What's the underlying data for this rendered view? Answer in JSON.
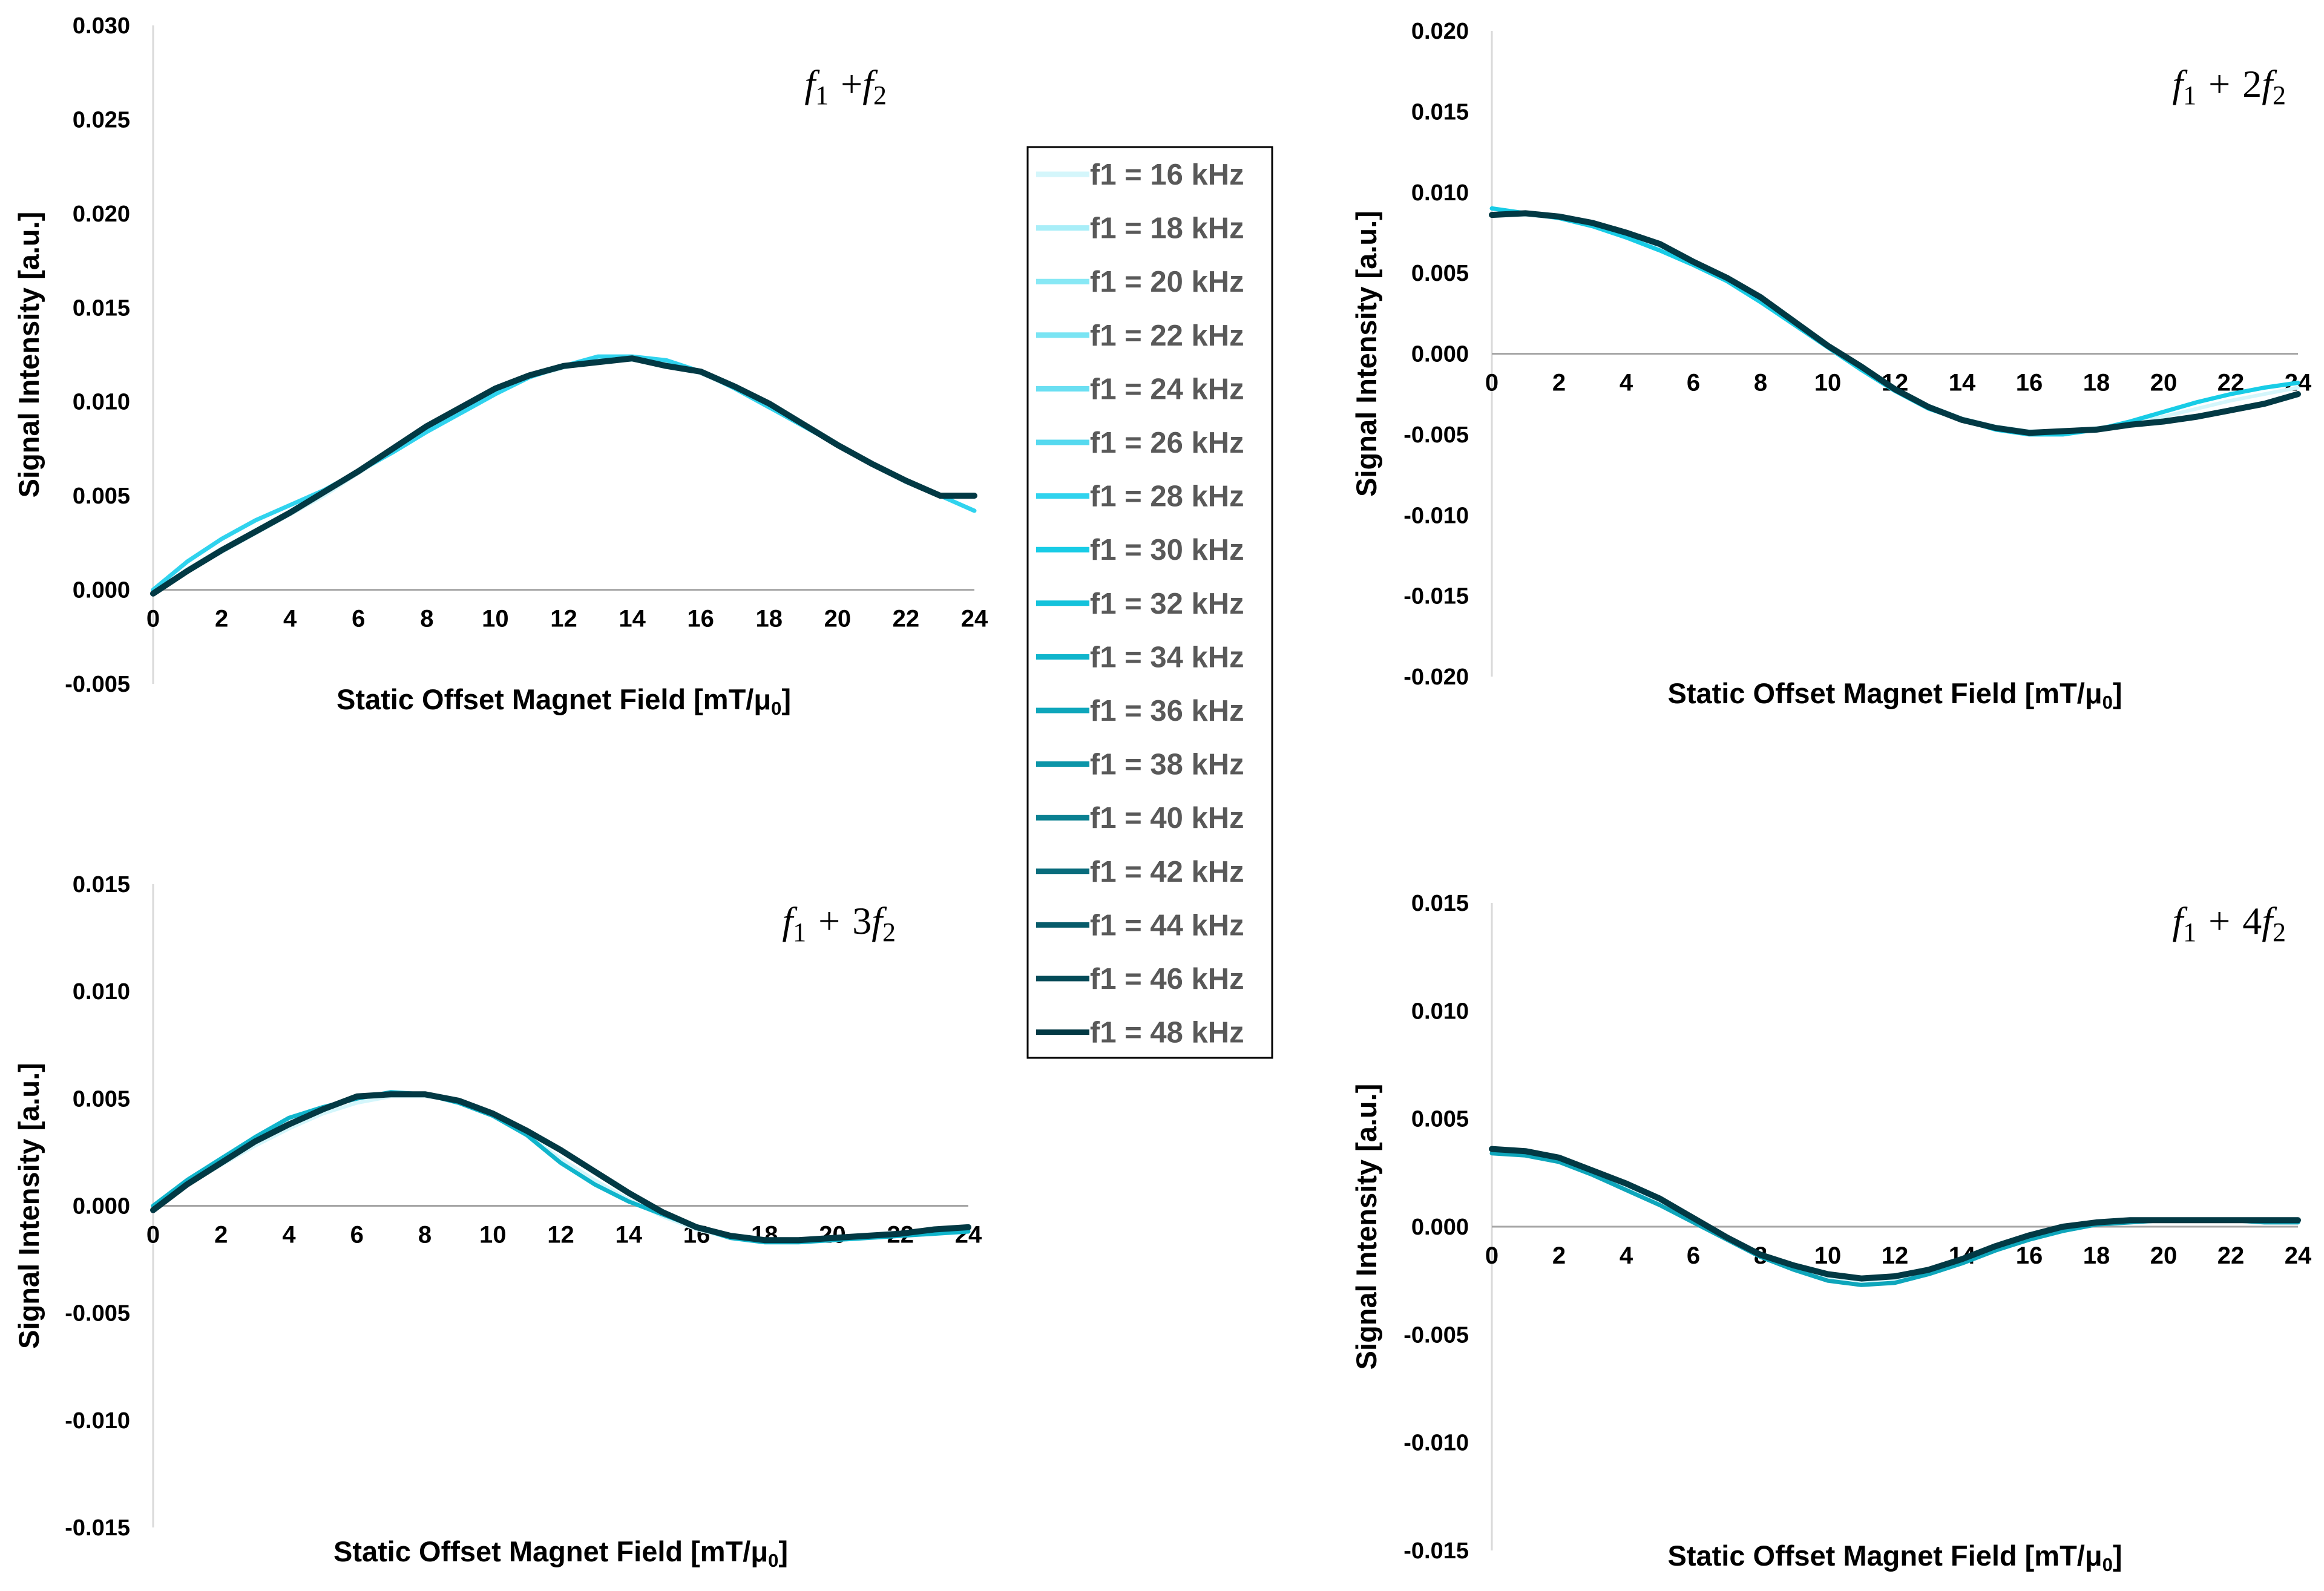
{
  "legend": {
    "series_names": [
      "f1 = 16 kHz",
      "f1 = 18 kHz",
      "f1 = 20 kHz",
      "f1 = 22 kHz",
      "f1 = 24 kHz",
      "f1 = 26 kHz",
      "f1 = 28 kHz",
      "f1 = 30 kHz",
      "f1 = 32 kHz",
      "f1 = 34 kHz",
      "f1 = 36 kHz",
      "f1 = 38 kHz",
      "f1 = 40 kHz",
      "f1 = 42 kHz",
      "f1 = 44 kHz",
      "f1 = 46 kHz",
      "f1 = 48 kHz"
    ],
    "series_colors": [
      "#d4f6fb",
      "#a8eef8",
      "#88e8f5",
      "#7ae4f3",
      "#6adff2",
      "#55d9ef",
      "#30d3ee",
      "#18cce6",
      "#14c2db",
      "#10b5cc",
      "#0ea6bb",
      "#0c95a8",
      "#0a8091",
      "#096c7c",
      "#075b6a",
      "#044b58",
      "#023944"
    ]
  },
  "chart_data": [
    {
      "type": "line",
      "title": "f1 + f2",
      "title_parts": {
        "a": "f",
        "s1": "1",
        "op": "+",
        "coef": "",
        "b": "f",
        "s2": "2"
      },
      "xlabel": "Static Offset Magnet Field [mT/μ0]",
      "ylabel": "Signal Intensity [a.u.]",
      "xlim": [
        0,
        24
      ],
      "ylim": [
        -0.005,
        0.03
      ],
      "x_ticks": [
        0,
        2,
        4,
        6,
        8,
        10,
        12,
        14,
        16,
        18,
        20,
        22,
        24
      ],
      "y_ticks": [
        "-0.005",
        "0.000",
        "0.005",
        "0.010",
        "0.015",
        "0.020",
        "0.025",
        "0.030"
      ],
      "x": [
        0,
        1,
        2,
        3,
        4,
        5,
        6,
        7,
        8,
        9,
        10,
        11,
        12,
        13,
        14,
        15,
        16,
        17,
        18,
        19,
        20,
        21,
        22,
        23,
        24
      ],
      "series": [
        {
          "name": "f1 = 16 kHz",
          "values": [
            0.0,
            0.001,
            0.002,
            0.003,
            0.004,
            0.005,
            0.0062,
            0.0073,
            0.0085,
            0.0095,
            0.0105,
            0.0113,
            0.0118,
            0.0122,
            0.0122,
            0.012,
            0.0115,
            0.0107,
            0.0097,
            0.0087,
            0.0077,
            0.0067,
            0.0057,
            0.005,
            0.005
          ]
        },
        {
          "name": "f1 = 28 kHz",
          "values": [
            0.0,
            0.0015,
            0.0027,
            0.0037,
            0.0045,
            0.0053,
            0.0063,
            0.0073,
            0.0084,
            0.0094,
            0.0104,
            0.0113,
            0.0119,
            0.0124,
            0.0124,
            0.0122,
            0.0116,
            0.0107,
            0.0097,
            0.0087,
            0.0077,
            0.0067,
            0.0058,
            0.005,
            0.0042
          ]
        },
        {
          "name": "f1 = 48 kHz",
          "values": [
            -0.0002,
            0.001,
            0.0021,
            0.0031,
            0.0041,
            0.0052,
            0.0063,
            0.0075,
            0.0087,
            0.0097,
            0.0107,
            0.0114,
            0.0119,
            0.0121,
            0.0123,
            0.0119,
            0.0116,
            0.0108,
            0.0099,
            0.0088,
            0.0077,
            0.0067,
            0.0058,
            0.005,
            0.005
          ]
        }
      ]
    },
    {
      "type": "line",
      "title": "f1 + 2f2",
      "title_parts": {
        "a": "f",
        "s1": "1",
        "op": "+",
        "coef": "2",
        "b": "f",
        "s2": "2"
      },
      "xlabel": "Static Offset Magnet Field [mT/μ0]",
      "ylabel": "Signal Intensity [a.u.]",
      "xlim": [
        0,
        24
      ],
      "ylim": [
        -0.02,
        0.02
      ],
      "x_ticks": [
        0,
        2,
        4,
        6,
        8,
        10,
        12,
        14,
        16,
        18,
        20,
        22,
        24
      ],
      "y_ticks": [
        "-0.020",
        "-0.015",
        "-0.010",
        "-0.005",
        "0.000",
        "0.005",
        "0.010",
        "0.015",
        "0.020"
      ],
      "x": [
        0,
        1,
        2,
        3,
        4,
        5,
        6,
        7,
        8,
        9,
        10,
        11,
        12,
        13,
        14,
        15,
        16,
        17,
        18,
        19,
        20,
        21,
        22,
        23,
        24
      ],
      "series": [
        {
          "name": "f1 = 16 kHz",
          "values": [
            0.0086,
            0.0086,
            0.0084,
            0.008,
            0.0074,
            0.0066,
            0.0056,
            0.0045,
            0.0032,
            0.0018,
            0.0004,
            -0.001,
            -0.0022,
            -0.0032,
            -0.004,
            -0.0045,
            -0.0048,
            -0.0048,
            -0.0046,
            -0.0043,
            -0.0039,
            -0.0034,
            -0.0029,
            -0.0025,
            -0.0021
          ]
        },
        {
          "name": "f1 = 30 kHz",
          "values": [
            0.009,
            0.0087,
            0.0084,
            0.0079,
            0.0072,
            0.0064,
            0.0055,
            0.0045,
            0.0032,
            0.0018,
            0.0004,
            -0.001,
            -0.0023,
            -0.0034,
            -0.0041,
            -0.0047,
            -0.005,
            -0.005,
            -0.0047,
            -0.0042,
            -0.0036,
            -0.003,
            -0.0025,
            -0.0021,
            -0.0018
          ]
        },
        {
          "name": "f1 = 48 kHz",
          "values": [
            0.0086,
            0.0087,
            0.0085,
            0.0081,
            0.0075,
            0.0068,
            0.0057,
            0.0047,
            0.0035,
            0.002,
            0.0005,
            -0.0008,
            -0.0022,
            -0.0033,
            -0.0041,
            -0.0046,
            -0.0049,
            -0.0048,
            -0.0047,
            -0.0044,
            -0.0042,
            -0.0039,
            -0.0035,
            -0.0031,
            -0.0025
          ]
        }
      ]
    },
    {
      "type": "line",
      "title": "f1 + 3f2",
      "title_parts": {
        "a": "f",
        "s1": "1",
        "op": "+",
        "coef": "3",
        "b": "f",
        "s2": "2"
      },
      "xlabel": "Static Offset Magnet Field [mT/μ0]",
      "ylabel": "Signal Intensity [a.u.]",
      "xlim": [
        0,
        24
      ],
      "ylim": [
        -0.015,
        0.015
      ],
      "x_ticks": [
        0,
        2,
        4,
        6,
        8,
        10,
        12,
        14,
        16,
        18,
        20,
        22,
        24
      ],
      "y_ticks": [
        "-0.015",
        "-0.010",
        "-0.005",
        "0.000",
        "0.005",
        "0.010",
        "0.015"
      ],
      "x": [
        0,
        1,
        2,
        3,
        4,
        5,
        6,
        7,
        8,
        9,
        10,
        11,
        12,
        13,
        14,
        15,
        16,
        17,
        18,
        19,
        20,
        21,
        22,
        23,
        24
      ],
      "series": [
        {
          "name": "f1 = 16 kHz",
          "values": [
            0.0,
            0.001,
            0.0019,
            0.0028,
            0.0036,
            0.0043,
            0.0048,
            0.0051,
            0.0051,
            0.0049,
            0.0042,
            0.0033,
            0.0022,
            0.0012,
            0.0003,
            -0.0005,
            -0.0011,
            -0.0015,
            -0.0017,
            -0.0017,
            -0.0016,
            -0.0015,
            -0.0014,
            -0.0012,
            -0.0011
          ]
        },
        {
          "name": "f1 = 34 kHz",
          "values": [
            0.0,
            0.0012,
            0.0022,
            0.0032,
            0.0041,
            0.0046,
            0.005,
            0.0053,
            0.0052,
            0.0048,
            0.0042,
            0.0033,
            0.002,
            0.001,
            0.0002,
            -0.0004,
            -0.001,
            -0.0015,
            -0.0017,
            -0.0017,
            -0.0016,
            -0.0015,
            -0.0014,
            -0.0013,
            -0.0012
          ]
        },
        {
          "name": "f1 = 48 kHz",
          "values": [
            -0.0002,
            0.001,
            0.002,
            0.003,
            0.0038,
            0.0045,
            0.0051,
            0.0052,
            0.0052,
            0.0049,
            0.0043,
            0.0035,
            0.0026,
            0.0016,
            0.0006,
            -0.0003,
            -0.001,
            -0.0014,
            -0.0016,
            -0.0016,
            -0.0015,
            -0.0014,
            -0.0013,
            -0.0011,
            -0.001
          ]
        }
      ]
    },
    {
      "type": "line",
      "title": "f1 + 4f2",
      "title_parts": {
        "a": "f",
        "s1": "1",
        "op": "+",
        "coef": "4",
        "b": "f",
        "s2": "2"
      },
      "xlabel": "Static Offset Magnet Field [mT/μ0]",
      "ylabel": "Signal Intensity [a.u.]",
      "xlim": [
        0,
        24
      ],
      "ylim": [
        -0.015,
        0.015
      ],
      "x_ticks": [
        0,
        2,
        4,
        6,
        8,
        10,
        12,
        14,
        16,
        18,
        20,
        22,
        24
      ],
      "y_ticks": [
        "-0.015",
        "-0.010",
        "-0.005",
        "0.000",
        "0.005",
        "0.010",
        "0.015"
      ],
      "x": [
        0,
        1,
        2,
        3,
        4,
        5,
        6,
        7,
        8,
        9,
        10,
        11,
        12,
        13,
        14,
        15,
        16,
        17,
        18,
        19,
        20,
        21,
        22,
        23,
        24
      ],
      "series": [
        {
          "name": "f1 = 16 kHz",
          "values": [
            0.0035,
            0.0034,
            0.0031,
            0.0025,
            0.0018,
            0.0011,
            0.0003,
            -0.0006,
            -0.0013,
            -0.0019,
            -0.0023,
            -0.0025,
            -0.0024,
            -0.0021,
            -0.0016,
            -0.001,
            -0.0005,
            -0.0001,
            0.0001,
            0.0002,
            0.0003,
            0.0003,
            0.0003,
            0.0003,
            0.0003
          ]
        },
        {
          "name": "f1 = 36 kHz",
          "values": [
            0.0034,
            0.0033,
            0.003,
            0.0024,
            0.0017,
            0.001,
            0.0002,
            -0.0006,
            -0.0014,
            -0.002,
            -0.0025,
            -0.0027,
            -0.0026,
            -0.0022,
            -0.0017,
            -0.0011,
            -0.0006,
            -0.0002,
            0.0001,
            0.0002,
            0.0003,
            0.0003,
            0.0003,
            0.0002,
            0.0002
          ]
        },
        {
          "name": "f1 = 48 kHz",
          "values": [
            0.0036,
            0.0035,
            0.0032,
            0.0026,
            0.002,
            0.0013,
            0.0004,
            -0.0005,
            -0.0013,
            -0.0018,
            -0.0022,
            -0.0024,
            -0.0023,
            -0.002,
            -0.0015,
            -0.0009,
            -0.0004,
            0.0,
            0.0002,
            0.0003,
            0.0003,
            0.0003,
            0.0003,
            0.0003,
            0.0003
          ]
        }
      ]
    }
  ]
}
